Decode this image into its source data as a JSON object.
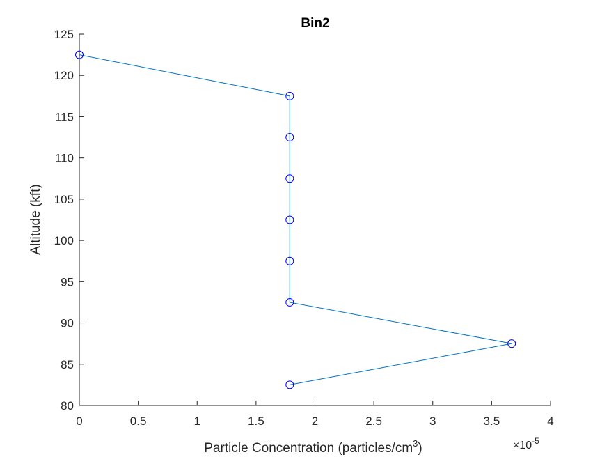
{
  "chart_data": {
    "type": "line",
    "title": "Bin2",
    "xlabel": "Particle Concentration (particles/cm",
    "xlabel_superscript": "3",
    "xlabel_suffix": ")",
    "ylabel": "Altitude (kft)",
    "x_exponent_label": "×10",
    "x_exponent_value": "-5",
    "xlim": [
      0,
      4
    ],
    "ylim": [
      80,
      125
    ],
    "xticks": [
      0,
      0.5,
      1,
      1.5,
      2,
      2.5,
      3,
      3.5,
      4
    ],
    "xtick_labels": [
      "0",
      "0.5",
      "1",
      "1.5",
      "2",
      "2.5",
      "3",
      "3.5",
      "4"
    ],
    "yticks": [
      80,
      85,
      90,
      95,
      100,
      105,
      110,
      115,
      120,
      125
    ],
    "ytick_labels": [
      "80",
      "85",
      "90",
      "95",
      "100",
      "105",
      "110",
      "115",
      "120",
      "125"
    ],
    "grid": false,
    "series": [
      {
        "line_color": "#0072BD",
        "marker": "circle",
        "marker_color": "#0000FF",
        "x": [
          0,
          1.786,
          1.786,
          1.786,
          1.786,
          1.786,
          1.786,
          3.67,
          1.786
        ],
        "y": [
          122.5,
          117.5,
          112.5,
          107.5,
          102.5,
          97.5,
          92.5,
          87.5,
          82.5
        ]
      }
    ]
  }
}
